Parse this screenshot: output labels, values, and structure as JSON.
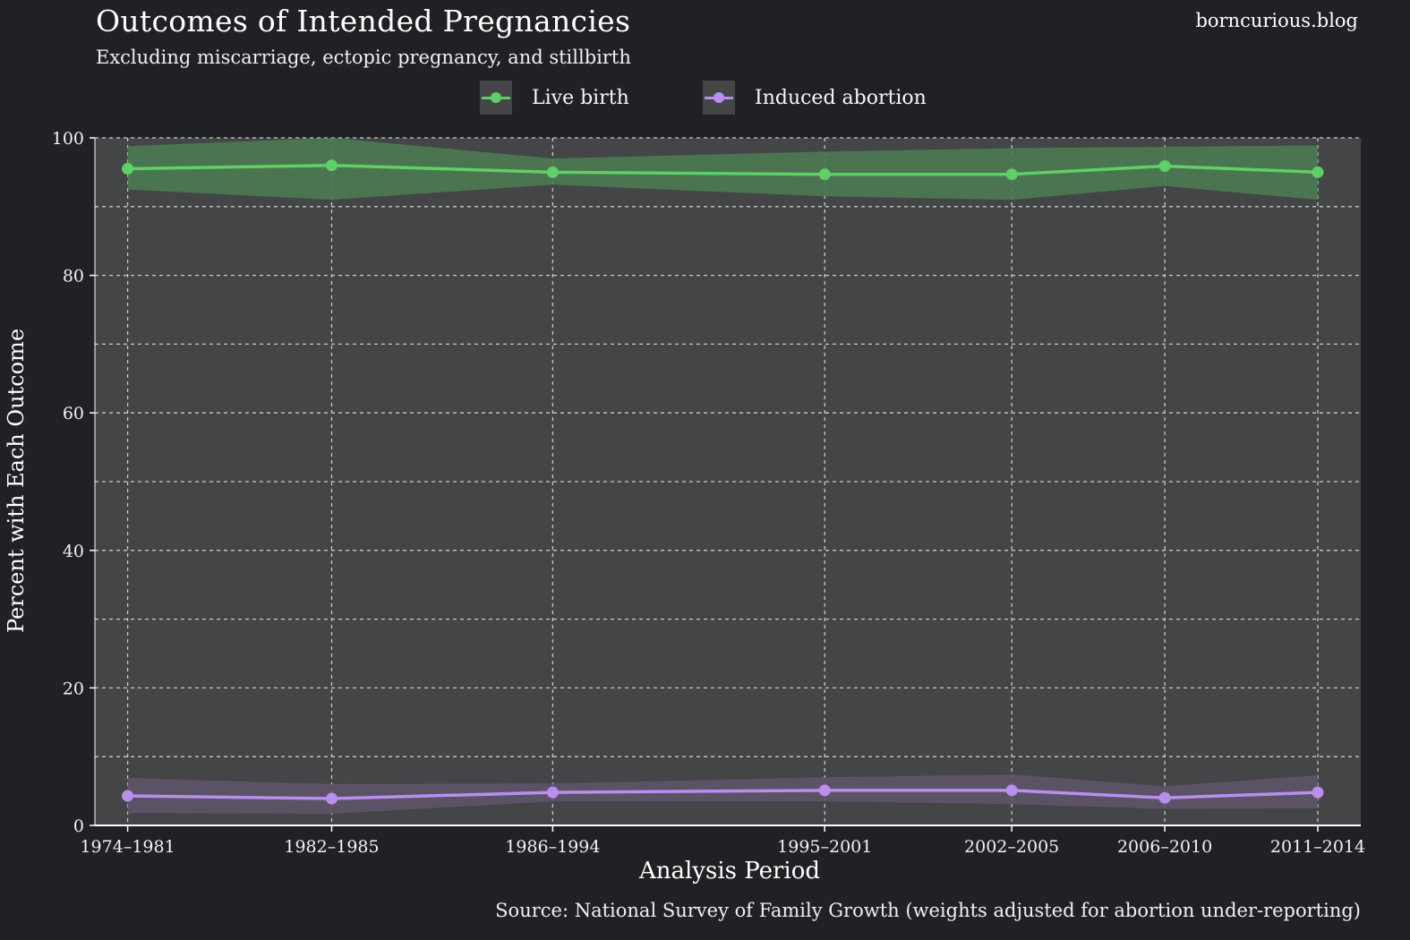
{
  "brand": "borncurious.blog",
  "chart_data": {
    "type": "line",
    "title": "Outcomes of Intended Pregnancies",
    "subtitle": "Excluding miscarriage, ectopic pregnancy, and stillbirth",
    "xlabel": "Analysis Period",
    "ylabel": "Percent with Each Outcome",
    "source": "Source: National Survey of Family Growth (weights adjusted for abortion under-reporting)",
    "categories": [
      "1974–1981",
      "1982–1985",
      "1986–1994",
      "1995–2001",
      "2002–2005",
      "2006–2010",
      "2011–2014"
    ],
    "x_midyears": [
      1977.5,
      1983.5,
      1990,
      1998,
      2003.5,
      2008,
      2012.5
    ],
    "ylim": [
      0,
      100
    ],
    "yticks": [
      0,
      20,
      40,
      60,
      80,
      100
    ],
    "grid": true,
    "legend_position": "top-center",
    "series": [
      {
        "name": "Live birth",
        "color": "#5fcf68",
        "band_color": "#4c7a52",
        "values": [
          95.5,
          96.0,
          95.0,
          94.7,
          94.7,
          95.9,
          95.0
        ],
        "lower": [
          92.5,
          91.0,
          93.2,
          91.5,
          91.0,
          93.0,
          91.0
        ],
        "upper": [
          98.8,
          100.0,
          97.0,
          98.0,
          98.5,
          98.7,
          98.9
        ]
      },
      {
        "name": "Induced abortion",
        "color": "#b98fee",
        "band_color": "#5f5368",
        "values": [
          4.3,
          3.9,
          4.8,
          5.1,
          5.1,
          4.0,
          4.8
        ],
        "lower": [
          1.8,
          1.7,
          3.5,
          3.5,
          3.1,
          2.4,
          2.5
        ],
        "upper": [
          6.9,
          6.0,
          6.1,
          7.0,
          7.4,
          5.7,
          7.3
        ]
      }
    ]
  }
}
